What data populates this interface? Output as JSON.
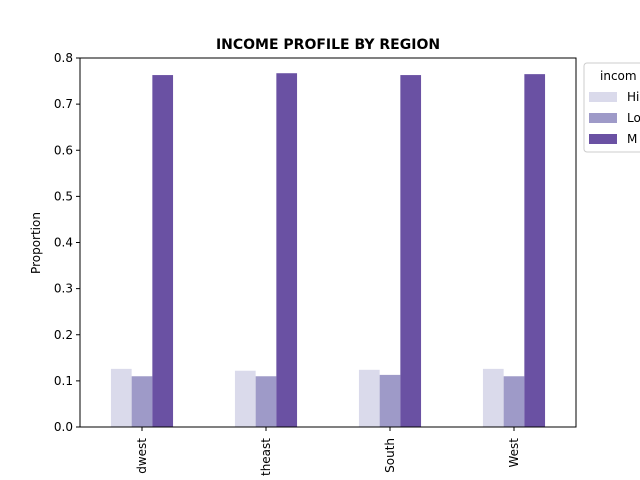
{
  "chart_data": {
    "type": "bar",
    "title": "INCOME PROFILE BY REGION",
    "xlabel": "",
    "ylabel": "Proportion",
    "ylim": [
      0,
      0.8
    ],
    "yticks": [
      "0.0",
      "0.1",
      "0.2",
      "0.3",
      "0.4",
      "0.5",
      "0.6",
      "0.7",
      "0.8"
    ],
    "categories": [
      "dwest",
      "theast",
      "South",
      "West"
    ],
    "legend": {
      "title": "incom",
      "placement": "right-outside-top"
    },
    "series": [
      {
        "name": "Hi",
        "color": "#dadaeb",
        "values": [
          0.126,
          0.122,
          0.124,
          0.126
        ]
      },
      {
        "name": "Lo",
        "color": "#9e9ac8",
        "values": [
          0.11,
          0.11,
          0.113,
          0.11
        ]
      },
      {
        "name": "M",
        "color": "#6a51a3",
        "values": [
          0.763,
          0.767,
          0.763,
          0.765
        ]
      }
    ],
    "grid": false
  }
}
